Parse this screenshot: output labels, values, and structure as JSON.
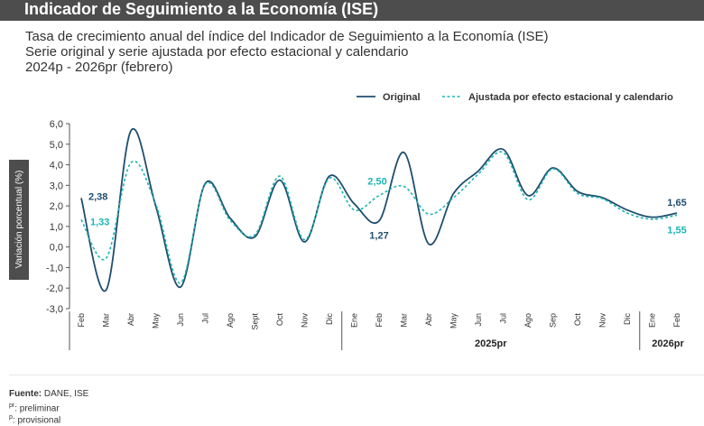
{
  "header": {
    "title": "Indicador de Seguimiento a la Economía (ISE)"
  },
  "subtitle": {
    "line1": "Tasa de crecimiento anual del índice del Indicador de Seguimiento a la Economía (ISE)",
    "line2": "Serie original y serie ajustada por efecto estacional y calendario",
    "line3": "2024p - 2026pr (febrero)"
  },
  "colors": {
    "original": "#1f4e6e",
    "adjusted": "#1cb5b3",
    "axis": "#555555",
    "header_bg": "#4d4d4d",
    "ylabel_bg": "#4d4d4d"
  },
  "chart_data": {
    "type": "line",
    "ylabel": "Variación porcentual (%)",
    "ylim": [
      -3.0,
      6.0
    ],
    "yticks": [
      "6,0",
      "5,0",
      "4,0",
      "3,0",
      "2,0",
      "1,0",
      "0,0",
      "-1,0",
      "-2,0",
      "-3,0"
    ],
    "categories": [
      "Feb",
      "Mar",
      "Abr",
      "May",
      "Jun",
      "Jul",
      "Ago",
      "Sept",
      "Oct",
      "Nov",
      "Dic",
      "Ene",
      "Feb",
      "Mar",
      "Abr",
      "May",
      "Jun",
      "Jul",
      "Ago",
      "Sep",
      "Oct",
      "Nov",
      "Dic",
      "Ene",
      "Feb"
    ],
    "year_groups": [
      {
        "label": "",
        "count": 11
      },
      {
        "label": "2025pr",
        "count": 12
      },
      {
        "label": "2026pr",
        "count": 2
      }
    ],
    "series": [
      {
        "name": "Original",
        "style": "solid",
        "values": [
          2.38,
          -2.1,
          5.65,
          2.0,
          -1.95,
          3.1,
          1.4,
          0.5,
          3.25,
          0.25,
          3.45,
          2.1,
          1.27,
          4.6,
          0.15,
          2.6,
          3.7,
          4.75,
          2.5,
          3.85,
          2.7,
          2.4,
          1.8,
          1.45,
          1.65
        ]
      },
      {
        "name": "Ajustada por efecto estacional y calendario",
        "style": "dashed",
        "values": [
          1.33,
          -0.55,
          4.1,
          2.1,
          -1.75,
          3.05,
          1.3,
          0.6,
          3.45,
          0.35,
          3.35,
          1.8,
          2.5,
          2.95,
          1.6,
          2.4,
          3.55,
          4.6,
          2.3,
          3.8,
          2.6,
          2.35,
          1.65,
          1.35,
          1.55
        ]
      }
    ],
    "annotations": [
      {
        "text": "2,38",
        "series": 0,
        "index": 0
      },
      {
        "text": "1,33",
        "series": 1,
        "index": 0
      },
      {
        "text": "2,50",
        "series": 1,
        "index": 12
      },
      {
        "text": "1,27",
        "series": 0,
        "index": 12
      },
      {
        "text": "1,65",
        "series": 0,
        "index": 24
      },
      {
        "text": "1,55",
        "series": 1,
        "index": 24
      }
    ],
    "legend": "top-right"
  },
  "footer": {
    "source_label": "Fuente:",
    "source_text": " DANE, ISE",
    "note1_sup": "pr",
    "note1_text": ": preliminar",
    "note2_sup": "p",
    "note2_text": ": provisional"
  }
}
